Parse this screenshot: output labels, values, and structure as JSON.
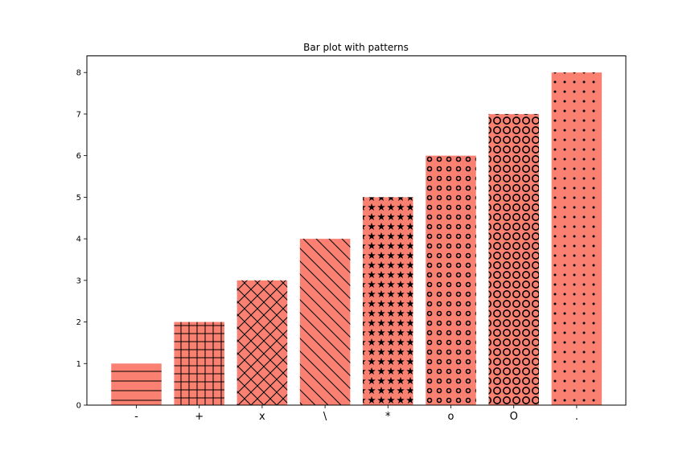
{
  "chart_data": {
    "type": "bar",
    "title": "Bar plot with patterns",
    "xlabel": "",
    "ylabel": "",
    "categories": [
      "-",
      "+",
      "x",
      "\\",
      "*",
      "o",
      "O",
      "."
    ],
    "values": [
      1,
      2,
      3,
      4,
      5,
      6,
      7,
      8
    ],
    "patterns": [
      "-",
      "+",
      "x",
      "\\",
      "*",
      "o",
      "O",
      "."
    ],
    "ylim": [
      0,
      8.4
    ],
    "yticks": [
      0,
      1,
      2,
      3,
      4,
      5,
      6,
      7,
      8
    ],
    "grid": false,
    "bar_color": "#fa8072",
    "hatch_color": "#000000"
  }
}
